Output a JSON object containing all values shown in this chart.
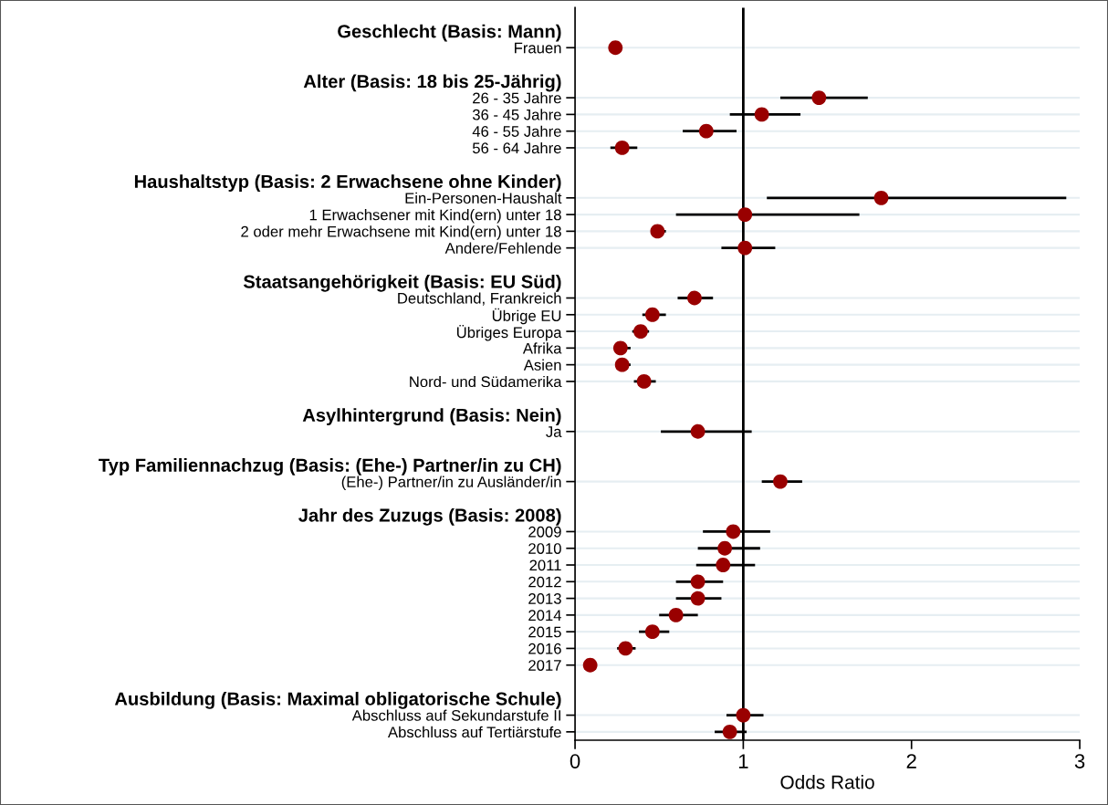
{
  "chart_data": {
    "type": "scatter",
    "orientation": "horizontal",
    "xlabel": "Odds Ratio",
    "categories": [
      "Geschlecht (Basis: Mann)",
      "Frauen",
      null,
      "Alter (Basis: 18 bis 25-Jährig)",
      "26 - 35 Jahre",
      "36 - 45 Jahre",
      "46 - 55 Jahre",
      "56 - 64 Jahre",
      null,
      "Haushaltstyp (Basis: 2 Erwachsene ohne Kinder)",
      "Ein-Personen-Haushalt",
      "1 Erwachsener mit Kind(ern) unter 18",
      "2 oder mehr Erwachsene mit Kind(ern) unter 18",
      "Andere/Fehlende",
      null,
      "Staatsangehörigkeit (Basis: EU Süd)",
      "Deutschland, Frankreich",
      "Übrige EU",
      "Übriges Europa",
      "Afrika",
      "Asien",
      "Nord- und Südamerika",
      null,
      "Asylhintergrund (Basis: Nein)",
      "Ja",
      null,
      "Typ Familiennachzug (Basis: (Ehe-) Partner/in zu CH)",
      "(Ehe-) Partner/in zu Ausländer/in",
      null,
      "Jahr des Zuzugs (Basis: 2008)",
      "2009",
      "2010",
      "2011",
      "2012",
      "2013",
      "2014",
      "2015",
      "2016",
      "2017",
      null,
      "Ausbildung (Basis: Maximal obligatorische Schule)",
      "Abschluss auf Sekundarstufe II",
      "Abschluss auf Tertiärstufe"
    ],
    "series": [
      {
        "color": "#990000",
        "values": [
          null,
          0.24,
          null,
          null,
          1.45,
          1.11,
          0.78,
          0.28,
          null,
          null,
          1.82,
          1.01,
          0.49,
          1.01,
          null,
          null,
          0.71,
          0.46,
          0.39,
          0.27,
          0.28,
          0.41,
          null,
          null,
          0.73,
          null,
          null,
          1.22,
          null,
          null,
          0.94,
          0.89,
          0.88,
          0.73,
          0.73,
          0.6,
          0.46,
          0.3,
          0.09,
          null,
          null,
          1.0,
          0.92
        ],
        "errors": [
          null,
          null,
          null,
          null,
          [
            1.22,
            1.74
          ],
          [
            0.92,
            1.34
          ],
          [
            0.64,
            0.96
          ],
          [
            0.21,
            0.37
          ],
          null,
          null,
          [
            1.14,
            2.92
          ],
          [
            0.6,
            1.69
          ],
          [
            0.45,
            0.54
          ],
          [
            0.87,
            1.19
          ],
          null,
          null,
          [
            0.61,
            0.82
          ],
          [
            0.4,
            0.54
          ],
          [
            0.34,
            0.44
          ],
          [
            0.23,
            0.33
          ],
          [
            0.24,
            0.33
          ],
          [
            0.35,
            0.48
          ],
          null,
          null,
          [
            0.51,
            1.05
          ],
          null,
          null,
          [
            1.11,
            1.35
          ],
          null,
          null,
          [
            0.76,
            1.16
          ],
          [
            0.73,
            1.1
          ],
          [
            0.72,
            1.07
          ],
          [
            0.6,
            0.88
          ],
          [
            0.6,
            0.87
          ],
          [
            0.5,
            0.73
          ],
          [
            0.38,
            0.56
          ],
          [
            0.25,
            0.36
          ],
          null,
          null,
          null,
          [
            0.9,
            1.12
          ],
          [
            0.83,
            1.02
          ]
        ]
      }
    ],
    "xlim": [
      0,
      3
    ],
    "xticks": [
      0,
      1,
      2,
      3
    ],
    "ref_lines": [
      {
        "axis": "x",
        "value": 1,
        "color": "#000000",
        "line_style": "solid"
      }
    ],
    "grid": "y",
    "marker": "circle",
    "legend": false
  }
}
